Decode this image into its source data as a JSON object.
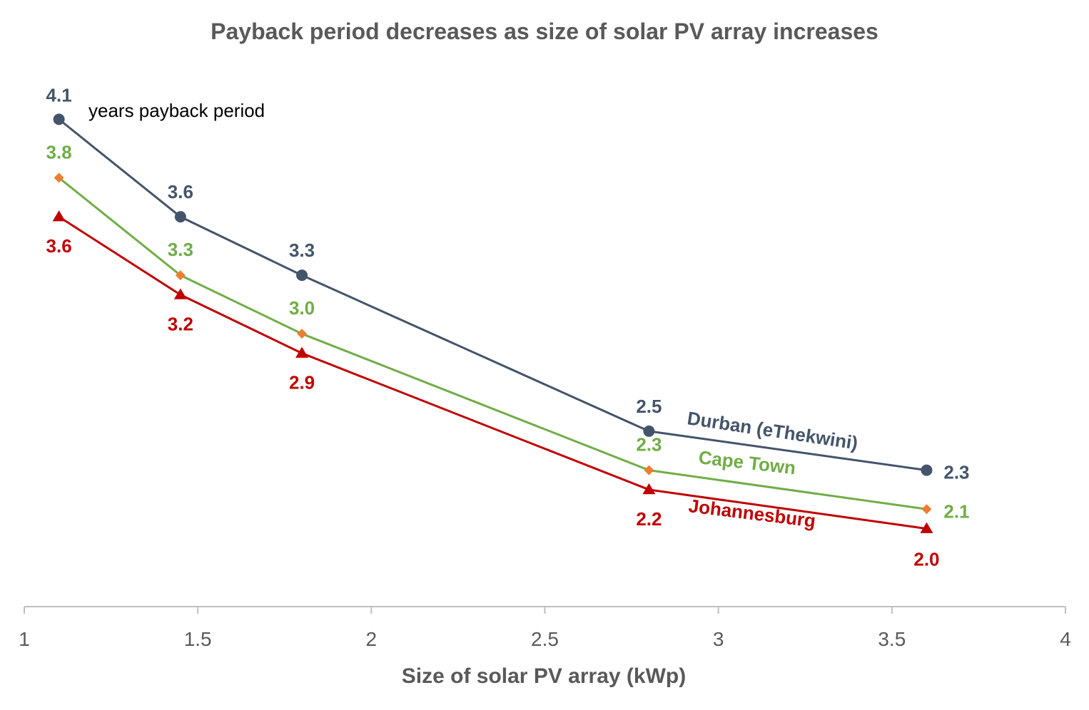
{
  "chart_data": {
    "type": "line",
    "title": "Payback period decreases as size of solar PV array increases",
    "xlabel": "Size of solar PV array (kWp)",
    "ylabel": "",
    "xlim": [
      1,
      4
    ],
    "ylim": [
      1.6,
      4.5
    ],
    "xticks": [
      "1",
      "1.5",
      "2",
      "2.5",
      "3",
      "3.5",
      "4"
    ],
    "grid": false,
    "annotation": "years payback period",
    "x": [
      1.1,
      1.45,
      1.8,
      2.8,
      3.6
    ],
    "series": [
      {
        "name": "Durban (eThekwini)",
        "color": "#44546a",
        "marker": "circle",
        "values": [
          4.1,
          3.6,
          3.3,
          2.5,
          2.3
        ],
        "labels": [
          "4.1",
          "3.6",
          "3.3",
          "2.5",
          "2.3"
        ]
      },
      {
        "name": "Cape Town",
        "color": "#70ad47",
        "marker_color": "#ed7d31",
        "marker": "diamond",
        "values": [
          3.8,
          3.3,
          3.0,
          2.3,
          2.1
        ],
        "labels": [
          "3.8",
          "3.3",
          "3.0",
          "2.3",
          "2.1"
        ]
      },
      {
        "name": "Johannesburg",
        "color": "#c00000",
        "marker": "triangle",
        "values": [
          3.6,
          3.2,
          2.9,
          2.2,
          2.0
        ],
        "labels": [
          "3.6",
          "3.2",
          "2.9",
          "2.2",
          "2.0"
        ]
      }
    ]
  }
}
